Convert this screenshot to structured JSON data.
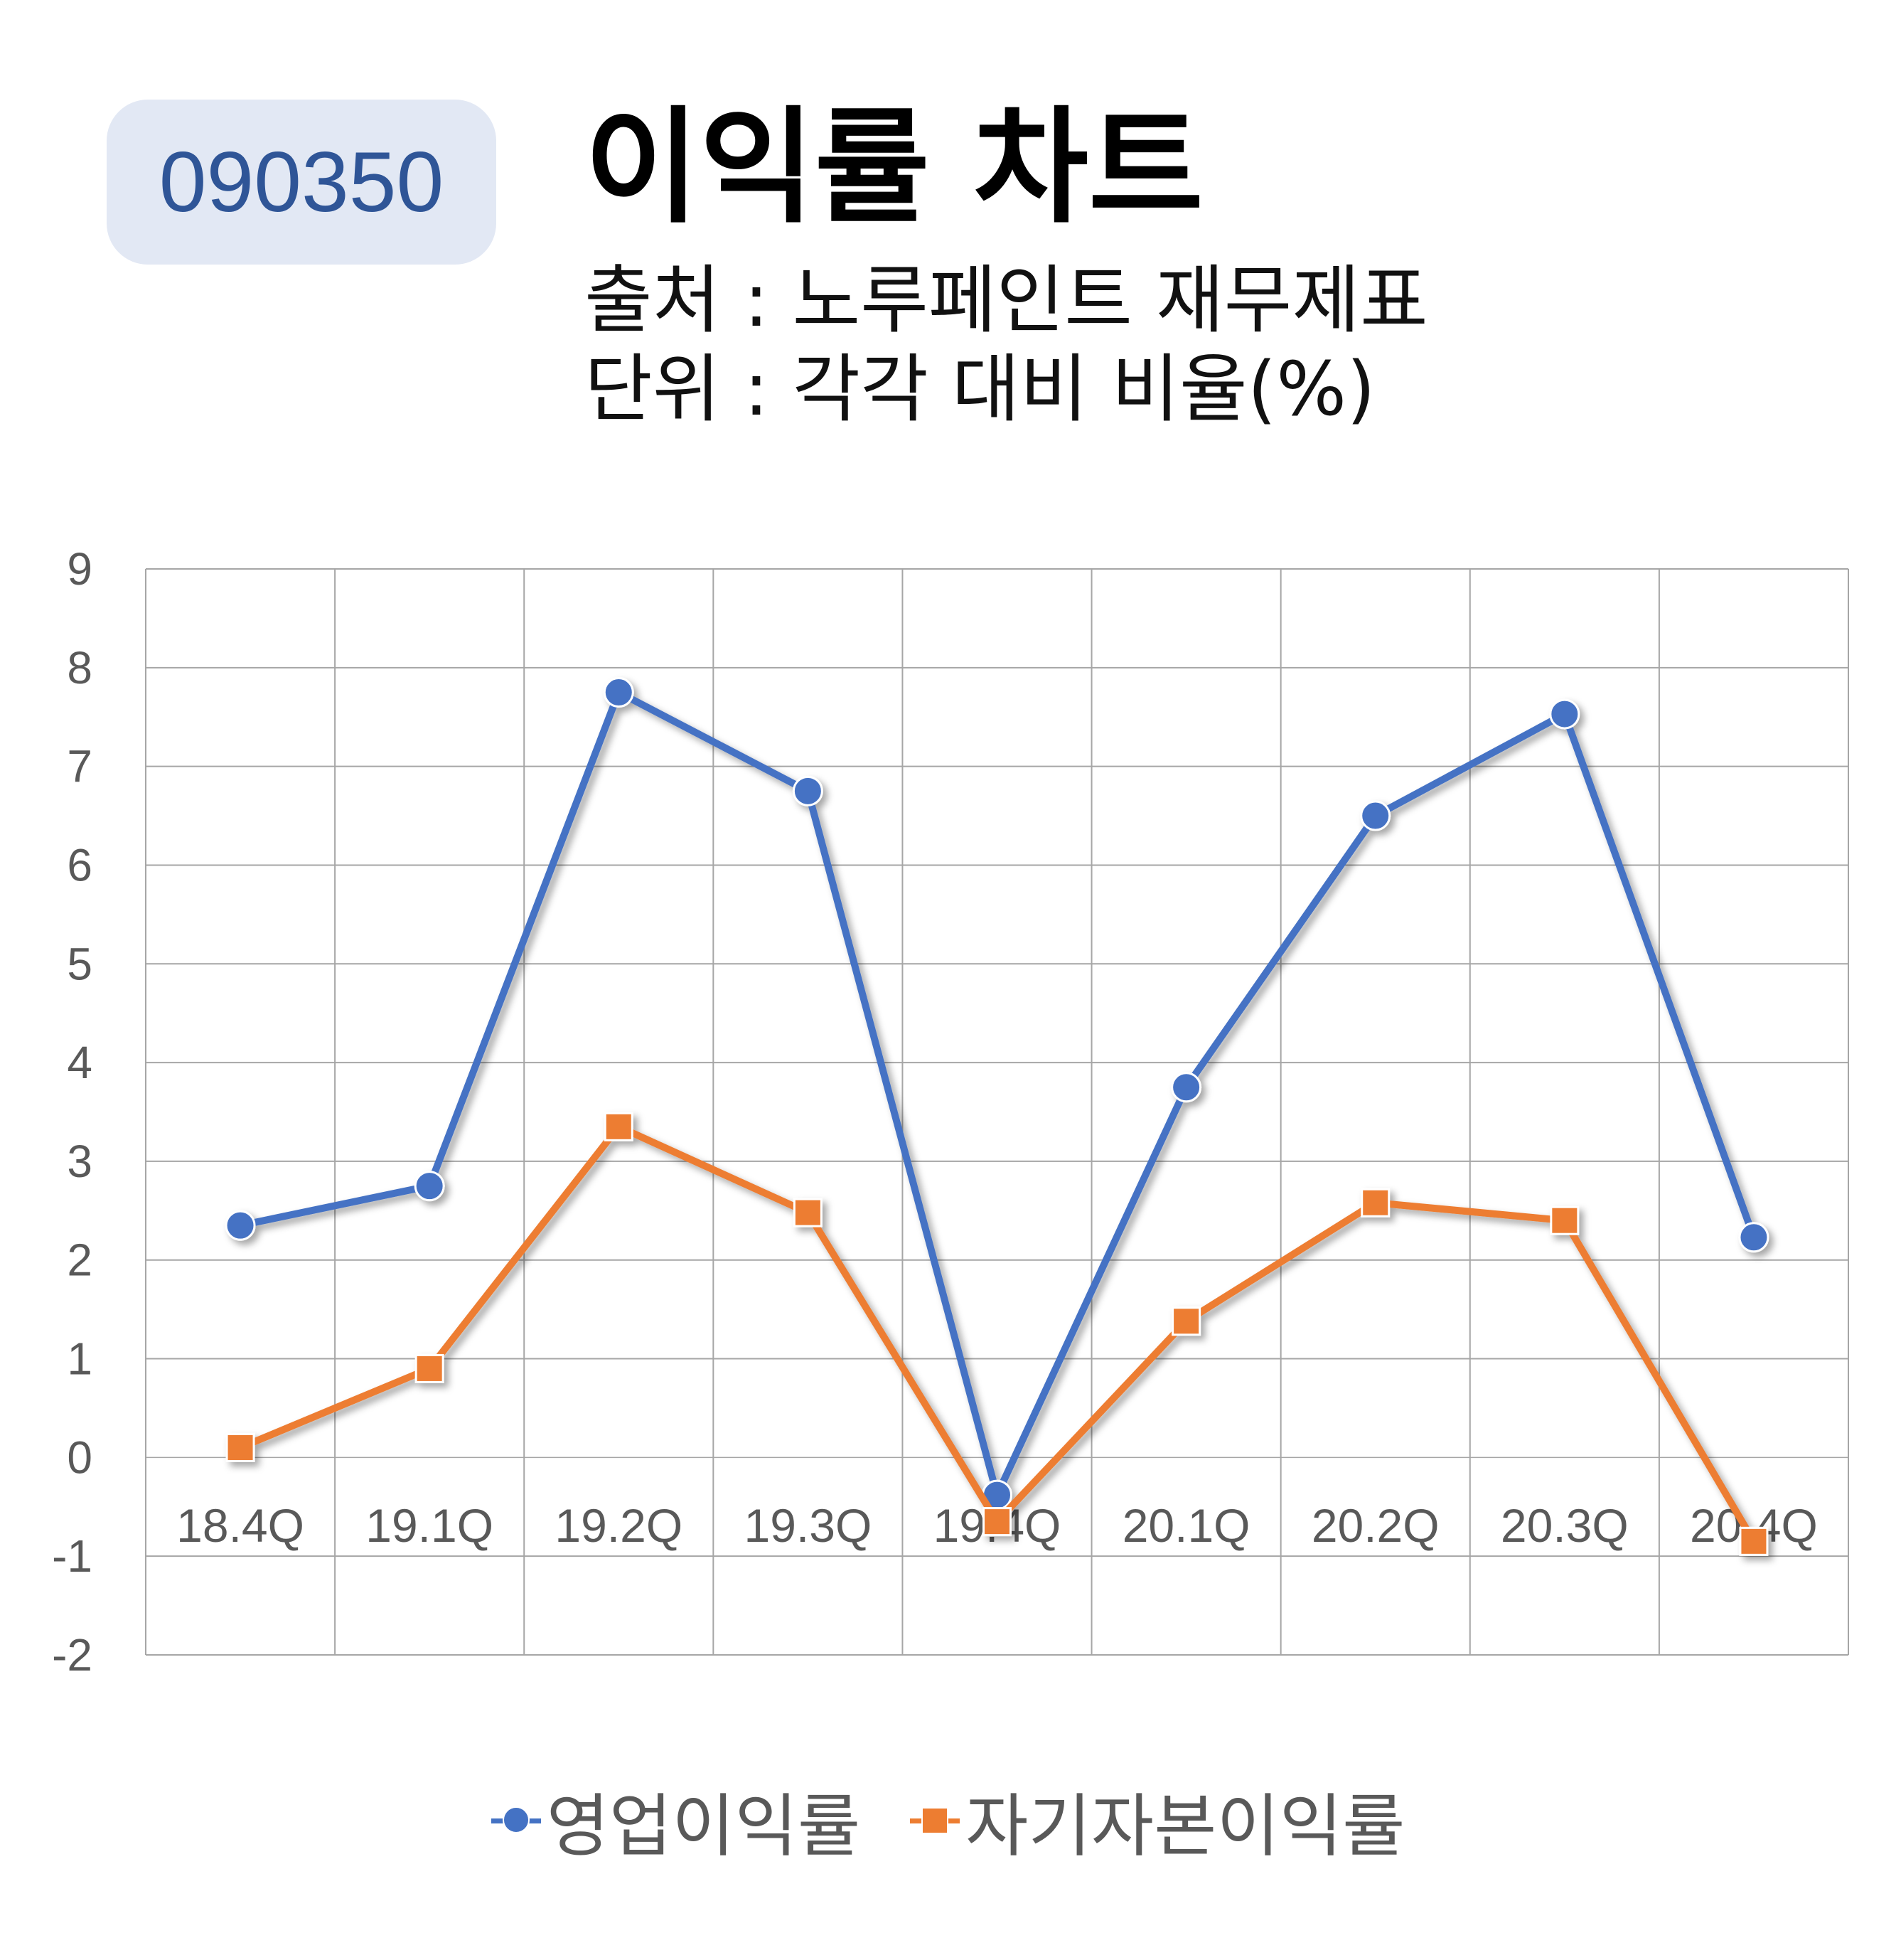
{
  "header": {
    "code": "090350",
    "title": "이익률 차트",
    "source": "출처 : 노루페인트 재무제표",
    "unit": "단위 : 각각 대비 비율(%)"
  },
  "colors": {
    "badge_bg": "#e2e8f4",
    "badge_text": "#2f5597",
    "series_1": "#4472c4",
    "series_2": "#ed7d31",
    "grid": "#a6a6a6",
    "tick_text": "#595959"
  },
  "chart_data": {
    "type": "line",
    "categories": [
      "18.4Q",
      "19.1Q",
      "19.2Q",
      "19.3Q",
      "19.4Q",
      "20.1Q",
      "20.2Q",
      "20.3Q",
      "20.4Q"
    ],
    "series": [
      {
        "name": "영업이익률",
        "marker": "circle",
        "color": "#4472c4",
        "values": [
          2.35,
          2.75,
          7.75,
          6.75,
          -0.38,
          3.75,
          6.5,
          7.53,
          2.23
        ]
      },
      {
        "name": "자기자본이익률",
        "marker": "square",
        "color": "#ed7d31",
        "values": [
          0.1,
          0.9,
          3.35,
          2.48,
          -0.65,
          1.38,
          2.58,
          2.4,
          -0.85
        ]
      }
    ],
    "ylim": [
      -2,
      9
    ],
    "yticks": [
      -2,
      -1,
      0,
      1,
      2,
      3,
      4,
      5,
      6,
      7,
      8,
      9
    ],
    "grid": true,
    "legend_position": "bottom"
  }
}
